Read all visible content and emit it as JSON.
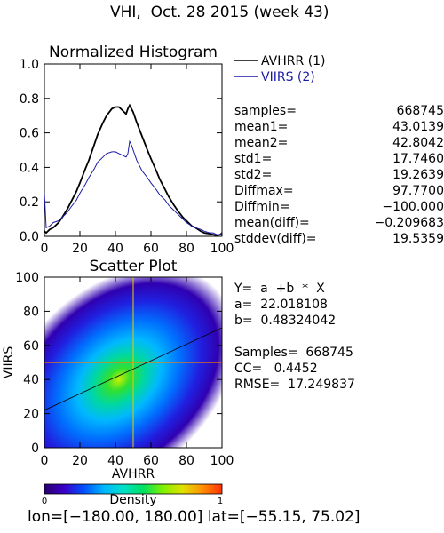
{
  "header": {
    "title": "VHI,  Oct. 28 2015 (week 43)"
  },
  "chart_data": [
    {
      "type": "line",
      "title": "Normalized Histogram",
      "xlim": [
        0,
        100
      ],
      "ylim": [
        0,
        1.0
      ],
      "x_ticks": [
        "0",
        "20",
        "40",
        "60",
        "80",
        "100"
      ],
      "y_ticks": [
        "0.0",
        "0.2",
        "0.4",
        "0.6",
        "0.8",
        "1.0"
      ],
      "legend_position": "top-right-outside",
      "series": [
        {
          "name": "AVHRR (1)",
          "color": "#000000",
          "x": [
            0,
            1,
            3,
            5,
            8,
            10,
            13,
            15,
            18,
            20,
            23,
            25,
            28,
            30,
            33,
            35,
            38,
            40,
            42,
            44,
            46,
            47,
            48,
            49,
            50,
            52,
            55,
            58,
            60,
            63,
            65,
            68,
            70,
            73,
            75,
            78,
            80,
            83,
            85,
            88,
            90,
            93,
            95,
            97,
            99,
            100
          ],
          "y": [
            0.03,
            0.02,
            0.04,
            0.05,
            0.08,
            0.11,
            0.16,
            0.2,
            0.26,
            0.31,
            0.39,
            0.44,
            0.53,
            0.59,
            0.66,
            0.7,
            0.74,
            0.75,
            0.75,
            0.73,
            0.71,
            0.74,
            0.76,
            0.74,
            0.72,
            0.66,
            0.58,
            0.5,
            0.45,
            0.38,
            0.33,
            0.27,
            0.23,
            0.18,
            0.15,
            0.11,
            0.09,
            0.06,
            0.05,
            0.03,
            0.02,
            0.015,
            0.01,
            0.005,
            0.01,
            0.02
          ]
        },
        {
          "name": "VIIRS (2)",
          "color": "#1a1aa6",
          "x": [
            0,
            1,
            3,
            5,
            8,
            10,
            13,
            15,
            18,
            20,
            23,
            25,
            28,
            30,
            33,
            35,
            38,
            40,
            42,
            44,
            46,
            47,
            48,
            49,
            50,
            52,
            55,
            58,
            60,
            63,
            65,
            68,
            70,
            73,
            75,
            78,
            80,
            83,
            85,
            88,
            90,
            93,
            95,
            97,
            99,
            100
          ],
          "y": [
            0.25,
            0.05,
            0.06,
            0.08,
            0.09,
            0.11,
            0.14,
            0.17,
            0.21,
            0.25,
            0.3,
            0.34,
            0.39,
            0.43,
            0.46,
            0.48,
            0.49,
            0.49,
            0.48,
            0.47,
            0.46,
            0.48,
            0.55,
            0.53,
            0.5,
            0.44,
            0.38,
            0.34,
            0.31,
            0.27,
            0.24,
            0.21,
            0.18,
            0.15,
            0.13,
            0.1,
            0.08,
            0.06,
            0.05,
            0.04,
            0.03,
            0.02,
            0.02,
            0.01,
            0.01,
            0.02
          ]
        }
      ]
    },
    {
      "type": "scatter",
      "title": "Scatter Plot",
      "xlabel": "AVHRR",
      "ylabel": "VIIRS",
      "xlim": [
        0,
        100
      ],
      "ylim": [
        0,
        100
      ],
      "x_ticks": [
        "0",
        "20",
        "40",
        "60",
        "80",
        "100"
      ],
      "y_ticks": [
        "0",
        "20",
        "40",
        "60",
        "80",
        "100"
      ],
      "fit_line": {
        "intercept": 22.018108,
        "slope": 0.48324042
      },
      "density_center": [
        42,
        40
      ],
      "colorbar": {
        "label": "Density",
        "min_label": "0",
        "max_label": "1",
        "colors": [
          "#2a006e",
          "#3a00c8",
          "#0050ff",
          "#00b4ff",
          "#00e0c8",
          "#00e060",
          "#80f000",
          "#e0e000",
          "#ff9000",
          "#ff3000"
        ]
      }
    }
  ],
  "stats": [
    {
      "key": "samples=",
      "value": "668745"
    },
    {
      "key": "mean1=",
      "value": "43.0139"
    },
    {
      "key": "mean2=",
      "value": "42.8042"
    },
    {
      "key": "std1=",
      "value": "17.7460"
    },
    {
      "key": "std2=",
      "value": "19.2639"
    },
    {
      "key": "Diffmax=",
      "value": "97.7700"
    },
    {
      "key": "Diffmin=",
      "value": "−100.000"
    },
    {
      "key": "mean(diff)=",
      "value": "−0.209683"
    },
    {
      "key": "stddev(diff)=",
      "value": "19.5359"
    }
  ],
  "regression": {
    "equation": "Y=  a  +b  *  X",
    "a_line": "a=  22.018108",
    "b_line": "b=  0.48324042",
    "samples_line": "Samples=  668745",
    "cc_line": "CC=   0.4452",
    "rmse_line": "RMSE=  17.249837"
  },
  "footer": {
    "range": "lon=[−180.00, 180.00] lat=[−55.15, 75.02]"
  }
}
